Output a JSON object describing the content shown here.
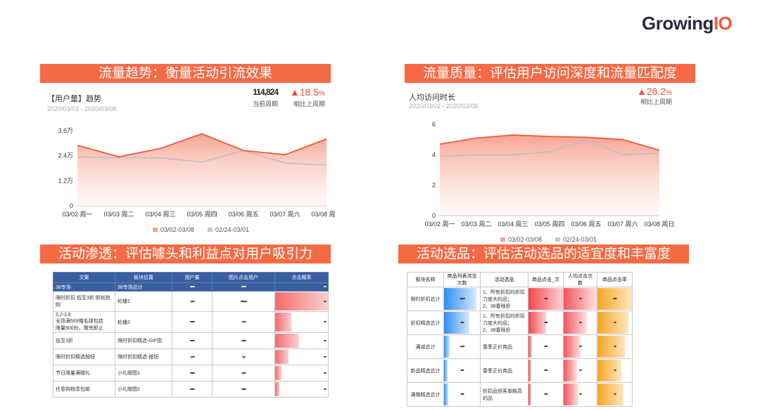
{
  "logo": {
    "text_main": "Growing",
    "text_accent": "IO"
  },
  "panels": [
    {
      "banner": "流量趋势：衡量活动引流效果",
      "title": "【用户量】趋势",
      "date": "2020/03/02 - 2020/03/08",
      "current_label": "当前周期",
      "current_value": "114,824",
      "change": "▲18.5",
      "change_unit": "%",
      "compare_label": "相比上周期"
    },
    {
      "banner": "流量质量：评估用户访问深度和流量匹配度",
      "title": "人均访问时长",
      "date": "2020/03/02 - 2020/03/08",
      "change": "▲26.2",
      "change_unit": "%",
      "compare_label": "相比上周期"
    },
    {
      "banner": "活动渗透：评估噱头和利益点对用户吸引力"
    },
    {
      "banner": "活动选品：评估活动选品的适宜度和丰富度"
    }
  ],
  "chart_data": [
    {
      "type": "area",
      "categories": [
        "03/02 周一",
        "03/03 周二",
        "03/04 周三",
        "03/05 周四",
        "03/06 周五",
        "03/07 周六",
        "03/08 周日"
      ],
      "y_ticks": [
        "0",
        "1.2万",
        "2.4万",
        "3.6万"
      ],
      "ylim": [
        0,
        36000
      ],
      "series": [
        {
          "name": "03/02-03/08",
          "values": [
            29000,
            23500,
            27500,
            34500,
            26500,
            24500,
            32000
          ]
        },
        {
          "name": "02/24-03/01",
          "values": [
            23500,
            23000,
            23000,
            21000,
            26500,
            20500,
            19500
          ]
        }
      ],
      "legend_position": "bottom",
      "colors": [
        "#f05a3c",
        "#bdbdbd"
      ]
    },
    {
      "type": "area",
      "categories": [
        "03/02 周一",
        "03/03 周二",
        "03/04 周三",
        "03/05 周四",
        "03/06 周五",
        "03/07 周六",
        "03/08 周日"
      ],
      "y_ticks": [
        "0",
        "2",
        "4",
        "6"
      ],
      "ylim": [
        0,
        6
      ],
      "series": [
        {
          "name": "03/02-03/08",
          "values": [
            4.7,
            5.1,
            5.3,
            5.2,
            5.15,
            5.0,
            4.3
          ]
        },
        {
          "name": "02/24-03/01",
          "values": [
            3.9,
            4.0,
            4.0,
            4.2,
            5.0,
            4.0,
            4.1
          ]
        }
      ],
      "legend_position": "bottom",
      "colors": [
        "#f05a3c",
        "#bdbdbd"
      ]
    }
  ],
  "table1": {
    "headers": [
      "文案",
      "板块位置",
      "用户量",
      "图片点击用户",
      "点击概率"
    ],
    "rows": [
      {
        "c0": "38专场",
        "c1": "38专场总计",
        "v2": "▪▪▪▪",
        "v3": "▪▪▪▪",
        "v4": "▪▪",
        "bar": 0,
        "sum": true
      },
      {
        "c0": "限时折扣 低至3折 即刻抢购",
        "c1": "轮播1",
        "v2": "▪.▪▪",
        "v3": "▪▪▪▪.▪",
        "v4": "▪▪",
        "bar": 1.0
      },
      {
        "c0": "3.2-3.8\n全场满569赠毛球包挂\n限量900份，赠完即止",
        "c1": "轮播2",
        "v2": "▪▪▪▪",
        "v3": "▪.▪▪",
        "v4": "▪▪",
        "bar": 0.3
      },
      {
        "c0": "低至3折",
        "c1": "限时折扣精选-GIF图",
        "v2": "▪▪▪▪",
        "v3": "▪▪▪▪",
        "v4": "▪▪",
        "bar": 0.45
      },
      {
        "c0": "限时折扣精选按钮",
        "c1": "限时折扣精选-按钮",
        "v2": "▪.▪▪",
        "v3": "▪.▪",
        "v4": "▪▪",
        "bar": 0.25
      },
      {
        "c0": "节日限量满赠礼",
        "c1": "小礼赠图1",
        "v2": "▪▪▪▪",
        "v3": "▪.▪▪",
        "v4": "▪▪",
        "bar": 0.12
      },
      {
        "c0": "任意购物享包邮",
        "c1": "小礼赠图2",
        "v2": "▪▪▪▪",
        "v3": "▪▪▪▪",
        "v4": "▪▪",
        "bar": 0.08
      }
    ]
  },
  "table2": {
    "headers": [
      "板块名称",
      "商品列表浏览次数",
      "活动选品",
      "商品点击_次",
      "人均点击次数",
      "商品点击率"
    ],
    "rows": [
      {
        "c0": "限时折扣总计",
        "v1": "▪▪.▪▪",
        "c2": "1、所有折扣的折扣力度大的品；\n2、38春限折",
        "v3": "▪▪▪",
        "v4": "▪▪",
        "v5": "▪▪▪",
        "b1": 0.9,
        "b3": 1.0,
        "b4": 1.0,
        "b5": 1.0
      },
      {
        "c0": "折扣精选总计",
        "v1": "▪▪▪",
        "c2": "1、所有折扣的折扣力度大的品；\n2、38春限折",
        "v3": "▪▪▪",
        "v4": "▪▪",
        "v5": "▪▪",
        "b1": 0.7,
        "b3": 0.5,
        "b4": 0.7,
        "b5": 0.9
      },
      {
        "c0": "满减总计",
        "v1": "▪.▪▪",
        "c2": "春季正价商品",
        "v3": "▪▪▪",
        "v4": "▪▪",
        "v5": "▪▪",
        "b1": 0.15,
        "b3": 0.1,
        "b4": 0.5,
        "b5": 0.8
      },
      {
        "c0": "新品精选总计",
        "v1": "▪▪▪",
        "c2": "春季正价商品",
        "v3": "▪▪▪",
        "v4": "▪▪",
        "v5": "▪▪",
        "b1": 0.1,
        "b3": 0.08,
        "b4": 0.4,
        "b5": 0.7
      },
      {
        "c0": "满赠精选总计",
        "v1": "▪▪▪",
        "c2": "折扣品但客单略高的品",
        "v3": "▪▪▪",
        "v4": "▪▪",
        "v5": "▪▪",
        "b1": 0.12,
        "b3": 0.08,
        "b4": 0.45,
        "b5": 0.75
      }
    ]
  }
}
